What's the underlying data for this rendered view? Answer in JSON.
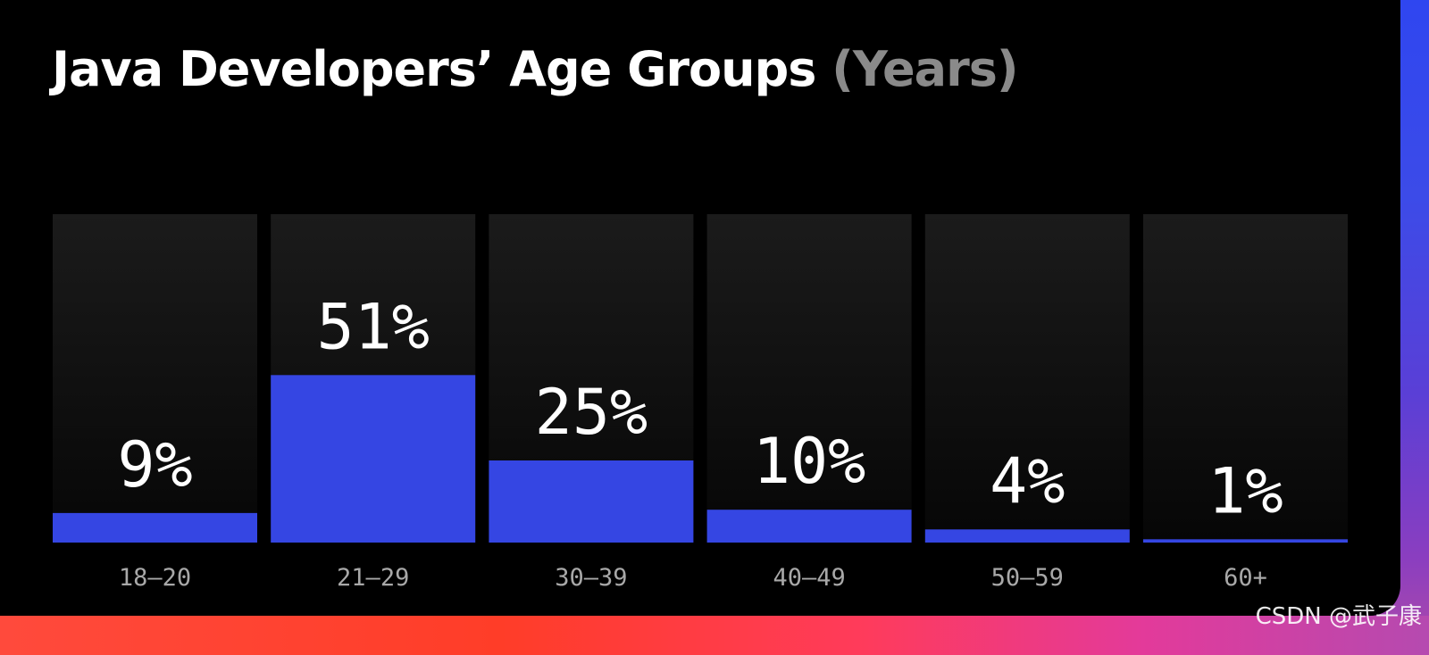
{
  "chart_data": {
    "type": "bar",
    "title": "Java Developers’ Age Groups",
    "title_unit": "(Years)",
    "categories": [
      "18–20",
      "21–29",
      "30–39",
      "40–49",
      "50–59",
      "60+"
    ],
    "values": [
      9,
      51,
      25,
      10,
      4,
      1
    ],
    "value_labels": [
      "9%",
      "51%",
      "25%",
      "10%",
      "4%",
      "1%"
    ],
    "ylim": [
      0,
      100
    ],
    "grid": false,
    "legend": "none",
    "colors": {
      "bar": "#3546e3",
      "track_top": "#1b1b1b",
      "track_bottom": "#060606",
      "background": "#000000"
    }
  },
  "watermark": "CSDN @武子康"
}
